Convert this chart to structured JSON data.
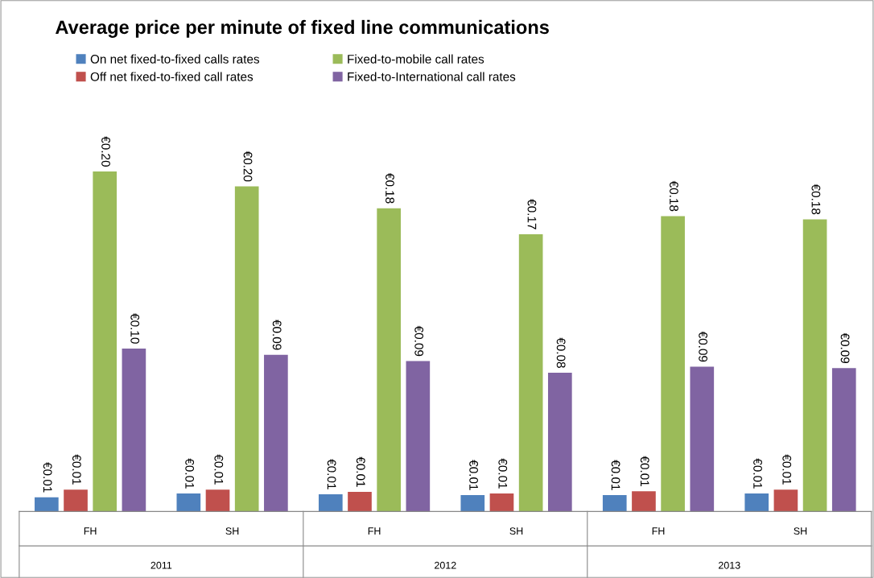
{
  "chart_data": {
    "type": "bar",
    "title": "Average price per minute of fixed line communications",
    "categories": [
      "FH",
      "SH",
      "FH",
      "SH",
      "FH",
      "SH"
    ],
    "annotations": [
      "2011",
      "2012",
      "2013"
    ],
    "legend": "top",
    "grid": false,
    "series": [
      {
        "name": "On net fixed-to-fixed calls rates",
        "color": "#4f81bd",
        "values": [
          0.0085,
          0.0108,
          0.0104,
          0.0099,
          0.0099,
          0.0108
        ],
        "value_labels": [
          "€0.01",
          "€0.01",
          "€0.01",
          "€0.01",
          "€0.01",
          "€0.01"
        ]
      },
      {
        "name": "Off net fixed-to-fixed call rates",
        "color": "#c0504d",
        "values": [
          0.0132,
          0.0132,
          0.0118,
          0.0108,
          0.0122,
          0.0132
        ],
        "value_labels": [
          "€0.01",
          "€0.01",
          "€0.01",
          "€0.01",
          "€0.01",
          "€0.01"
        ]
      },
      {
        "name": "Fixed-to-mobile call rates",
        "color": "#9bbb59",
        "values": [
          0.2044,
          0.1955,
          0.1823,
          0.1667,
          0.1776,
          0.1757
        ],
        "value_labels": [
          "€0.20",
          "€0.20",
          "€0.18",
          "€0.17",
          "€0.18",
          "€0.18"
        ]
      },
      {
        "name": "Fixed-to-International call rates",
        "color": "#8064a2",
        "values": [
          0.098,
          0.0942,
          0.0905,
          0.0834,
          0.0871,
          0.0862
        ],
        "value_labels": [
          "€0.10",
          "€0.09",
          "€0.09",
          "€0.08",
          "€0.09",
          "€0.09"
        ]
      }
    ]
  }
}
